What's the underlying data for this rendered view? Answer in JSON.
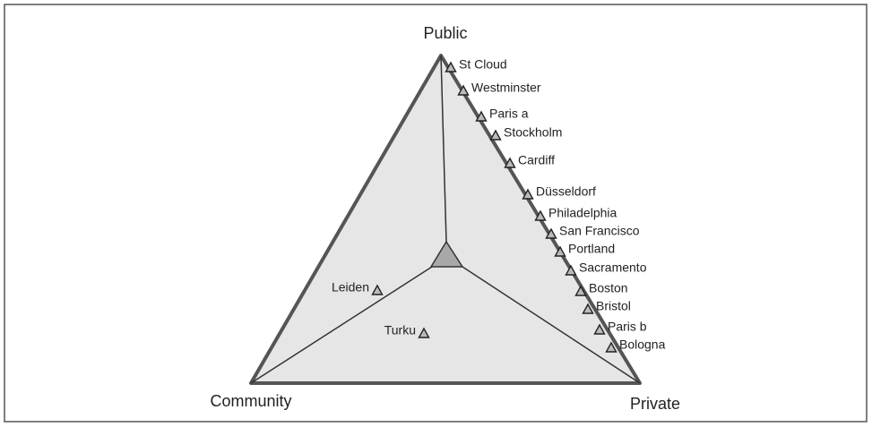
{
  "corners": {
    "top": "Public",
    "left": "Community",
    "right": "Private"
  },
  "nodes": [
    {
      "label": "St Cloud"
    },
    {
      "label": "Westminster"
    },
    {
      "label": "Paris a"
    },
    {
      "label": "Stockholm"
    },
    {
      "label": "Cardiff"
    },
    {
      "label": "Düsseldorf"
    },
    {
      "label": "Philadelphia"
    },
    {
      "label": "San Francisco"
    },
    {
      "label": "Portland"
    },
    {
      "label": "Sacramento"
    },
    {
      "label": "Boston"
    },
    {
      "label": "Bristol"
    },
    {
      "label": "Paris b"
    },
    {
      "label": "Bologna"
    },
    {
      "label": "Leiden"
    },
    {
      "label": "Turku"
    }
  ]
}
